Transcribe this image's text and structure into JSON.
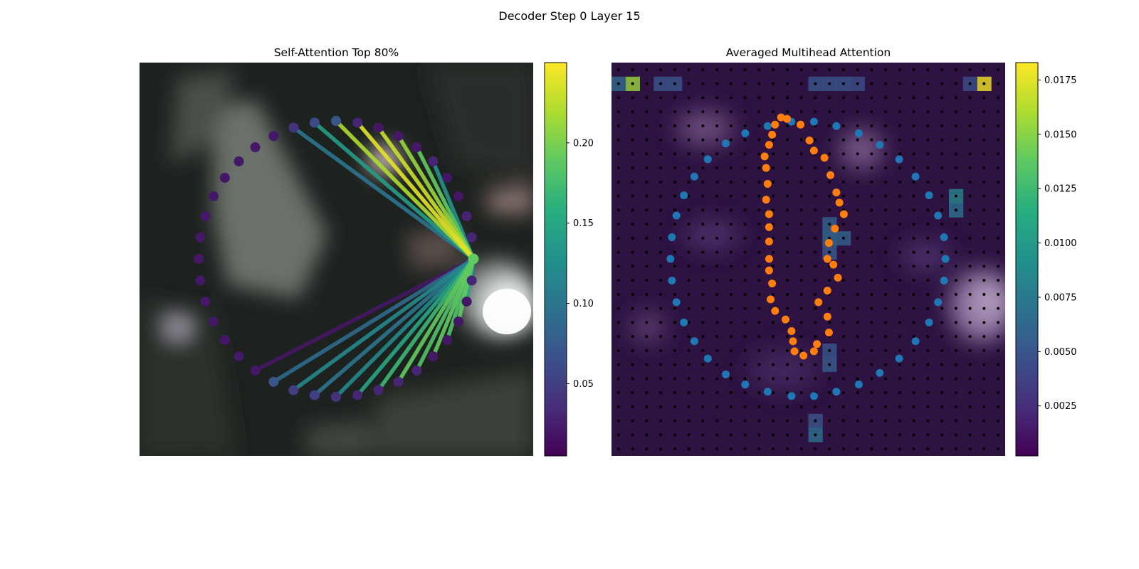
{
  "figure": {
    "title": "Decoder Step 0 Layer 15"
  },
  "chart_data": [
    {
      "type": "scatter",
      "title": "Self-Attention Top 80%",
      "description_points": "40 contour points on an ellipse over a blurred background photo; lines from the highlighted point 0 to the points receiving the top-80% attention, colored by attention weight",
      "points_count": 40,
      "source_point_index": 0,
      "point_weights": [
        0.19,
        0.03,
        0.03,
        0.02,
        0.02,
        0.03,
        0.02,
        0.02,
        0.02,
        0.03,
        0.07,
        0.06,
        0.04,
        0.02,
        0.02,
        0.02,
        0.02,
        0.02,
        0.02,
        0.02,
        0.02,
        0.02,
        0.02,
        0.02,
        0.02,
        0.02,
        0.02,
        0.07,
        0.05,
        0.05,
        0.04,
        0.03,
        0.03,
        0.03,
        0.03,
        0.02,
        0.02,
        0.02,
        0.02,
        0.03
      ],
      "attention_edges": [
        {
          "to": 5,
          "weight": 0.13
        },
        {
          "to": 6,
          "weight": 0.19
        },
        {
          "to": 7,
          "weight": 0.21
        },
        {
          "to": 8,
          "weight": 0.23
        },
        {
          "to": 9,
          "weight": 0.24
        },
        {
          "to": 10,
          "weight": 0.22
        },
        {
          "to": 11,
          "weight": 0.14
        },
        {
          "to": 12,
          "weight": 0.1
        },
        {
          "to": 29,
          "weight": 0.1
        },
        {
          "to": 30,
          "weight": 0.12
        },
        {
          "to": 31,
          "weight": 0.15
        },
        {
          "to": 32,
          "weight": 0.17
        },
        {
          "to": 33,
          "weight": 0.19
        },
        {
          "to": 34,
          "weight": 0.18
        },
        {
          "to": 35,
          "weight": 0.19
        },
        {
          "to": 36,
          "weight": 0.18
        },
        {
          "to": 37,
          "weight": 0.19
        },
        {
          "to": 38,
          "weight": 0.15
        },
        {
          "to": 39,
          "weight": 0.1
        },
        {
          "to": 28,
          "weight": 0.12
        },
        {
          "to": 27,
          "weight": 0.09
        },
        {
          "to": 26,
          "weight": 0.02
        }
      ],
      "colorbar": {
        "colormap": "viridis",
        "range": [
          0.005,
          0.25
        ],
        "ticks": [
          0.05,
          0.1,
          0.15,
          0.2
        ],
        "tick_labels": [
          "0.05",
          "0.10",
          "0.15",
          "0.20"
        ]
      }
    },
    {
      "type": "heatmap",
      "title": "Averaged Multihead Attention",
      "grid_size": [
        28,
        28
      ],
      "grid_dots": "black dot at each cell center",
      "hot_cells": [
        {
          "row": 1,
          "col": 1,
          "value": 0.0155
        },
        {
          "row": 1,
          "col": 26,
          "value": 0.018
        },
        {
          "row": 1,
          "col": 0,
          "value": 0.0065
        },
        {
          "row": 1,
          "col": 3,
          "value": 0.005
        },
        {
          "row": 1,
          "col": 4,
          "value": 0.005
        },
        {
          "row": 1,
          "col": 14,
          "value": 0.005
        },
        {
          "row": 1,
          "col": 15,
          "value": 0.005
        },
        {
          "row": 1,
          "col": 16,
          "value": 0.005
        },
        {
          "row": 1,
          "col": 17,
          "value": 0.0045
        },
        {
          "row": 1,
          "col": 25,
          "value": 0.0045
        },
        {
          "row": 9,
          "col": 24,
          "value": 0.0085
        },
        {
          "row": 10,
          "col": 24,
          "value": 0.007
        },
        {
          "row": 11,
          "col": 15,
          "value": 0.006
        },
        {
          "row": 12,
          "col": 15,
          "value": 0.0065
        },
        {
          "row": 12,
          "col": 16,
          "value": 0.006
        },
        {
          "row": 13,
          "col": 15,
          "value": 0.0055
        },
        {
          "row": 20,
          "col": 15,
          "value": 0.005
        },
        {
          "row": 21,
          "col": 15,
          "value": 0.0055
        },
        {
          "row": 25,
          "col": 14,
          "value": 0.005
        },
        {
          "row": 26,
          "col": 14,
          "value": 0.007
        }
      ],
      "series": [
        {
          "color": "#1f77b4",
          "points": [
            [
              -0.92,
              0.0
            ],
            [
              -0.91,
              -0.15
            ],
            [
              -0.88,
              -0.3
            ],
            [
              -0.83,
              -0.44
            ],
            [
              -0.76,
              -0.57
            ],
            [
              -0.67,
              -0.69
            ],
            [
              -0.55,
              -0.8
            ],
            [
              -0.42,
              -0.87
            ],
            [
              -0.27,
              -0.92
            ],
            [
              -0.11,
              -0.95
            ],
            [
              0.04,
              -0.95
            ],
            [
              0.19,
              -0.92
            ],
            [
              0.34,
              -0.87
            ],
            [
              0.48,
              -0.79
            ],
            [
              0.61,
              -0.69
            ],
            [
              0.72,
              -0.57
            ],
            [
              0.81,
              -0.44
            ],
            [
              0.87,
              -0.3
            ],
            [
              0.91,
              -0.15
            ],
            [
              0.92,
              0.0
            ],
            [
              0.91,
              0.15
            ],
            [
              0.87,
              0.3
            ],
            [
              0.81,
              0.44
            ],
            [
              0.72,
              0.57
            ],
            [
              0.61,
              0.69
            ],
            [
              0.48,
              0.79
            ],
            [
              0.34,
              0.87
            ],
            [
              0.19,
              0.92
            ],
            [
              0.04,
              0.95
            ],
            [
              -0.11,
              0.95
            ],
            [
              -0.27,
              0.92
            ],
            [
              -0.42,
              0.87
            ],
            [
              -0.55,
              0.8
            ],
            [
              -0.67,
              0.69
            ],
            [
              -0.76,
              0.57
            ],
            [
              -0.83,
              0.44
            ],
            [
              -0.88,
              0.3
            ],
            [
              -0.91,
              0.15
            ]
          ]
        },
        {
          "color": "#ff7f0e",
          "points": [
            [
              -0.18,
              -0.98
            ],
            [
              -0.14,
              -0.97
            ],
            [
              -0.05,
              -0.93
            ],
            [
              -0.22,
              -0.93
            ],
            [
              -0.24,
              -0.86
            ],
            [
              0.01,
              -0.82
            ],
            [
              -0.26,
              -0.79
            ],
            [
              0.04,
              -0.75
            ],
            [
              -0.29,
              -0.71
            ],
            [
              0.11,
              -0.7
            ],
            [
              -0.28,
              -0.63
            ],
            [
              0.15,
              -0.58
            ],
            [
              -0.27,
              -0.52
            ],
            [
              0.19,
              -0.46
            ],
            [
              -0.28,
              -0.41
            ],
            [
              0.21,
              -0.39
            ],
            [
              -0.26,
              -0.31
            ],
            [
              0.24,
              -0.31
            ],
            [
              0.18,
              -0.21
            ],
            [
              -0.26,
              -0.22
            ],
            [
              0.14,
              -0.11
            ],
            [
              -0.26,
              -0.12
            ],
            [
              0.13,
              0.0
            ],
            [
              -0.26,
              0.0
            ],
            [
              0.17,
              0.04
            ],
            [
              -0.26,
              0.08
            ],
            [
              0.2,
              0.13
            ],
            [
              -0.24,
              0.17
            ],
            [
              0.13,
              0.22
            ],
            [
              -0.25,
              0.28
            ],
            [
              0.07,
              0.3
            ],
            [
              -0.22,
              0.36
            ],
            [
              0.13,
              0.4
            ],
            [
              -0.15,
              0.42
            ],
            [
              -0.11,
              0.5
            ],
            [
              0.14,
              0.51
            ],
            [
              -0.1,
              0.57
            ],
            [
              0.06,
              0.59
            ],
            [
              -0.09,
              0.64
            ],
            [
              -0.03,
              0.67
            ],
            [
              0.04,
              0.64
            ]
          ]
        }
      ],
      "colorbar": {
        "colormap": "viridis",
        "range": [
          0.0002,
          0.0183
        ],
        "ticks": [
          0.0025,
          0.005,
          0.0075,
          0.01,
          0.0125,
          0.015,
          0.0175
        ],
        "tick_labels": [
          "0.0025",
          "0.0050",
          "0.0075",
          "0.0100",
          "0.0125",
          "0.0150",
          "0.0175"
        ]
      }
    }
  ]
}
